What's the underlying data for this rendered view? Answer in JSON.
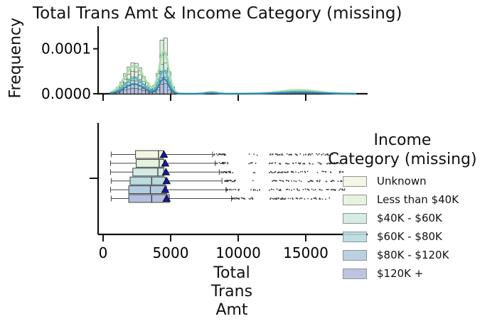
{
  "title": "Total Trans Amt & Income Category (missing)",
  "chart_data": [
    {
      "type": "histogram",
      "ylabel": "Frequency",
      "ylim": [
        0,
        0.00015
      ],
      "yticks": [
        "0.0000",
        "0.0001"
      ],
      "ytick_values": [
        0,
        0.0001
      ],
      "xlim": [
        -500,
        19500
      ],
      "kde_peaks": [
        {
          "x": 2300,
          "y": 6.2e-05
        },
        {
          "x": 4500,
          "y": 9.5e-05
        },
        {
          "x": 14500,
          "y": 8e-06
        }
      ],
      "bars_max_y": 0.00014
    },
    {
      "type": "box",
      "xlabel": "Total\nTrans\nAmt",
      "xlim": [
        -500,
        19500
      ],
      "xticks": [
        "0",
        "5000",
        "10000",
        "15000"
      ],
      "xtick_values": [
        0,
        5000,
        10000,
        15000
      ],
      "legend_title": "Income\nCategory (missing)",
      "legend_position": "right",
      "series": [
        {
          "name": "Unknown",
          "color": "#f3f7e2",
          "whisker_lo": 600,
          "q1": 2400,
          "median": 4100,
          "q3": 4450,
          "mean": 4500,
          "whisker_hi": 8100,
          "outlier_max": 17600
        },
        {
          "name": "Less than $40K",
          "color": "#e4f2de",
          "whisker_lo": 550,
          "q1": 2450,
          "median": 4150,
          "q3": 4500,
          "mean": 4600,
          "whisker_hi": 8300,
          "outlier_max": 17800
        },
        {
          "name": "$40K - $60K",
          "color": "#d2ebe4",
          "whisker_lo": 550,
          "q1": 2200,
          "median": 4050,
          "q3": 4500,
          "mean": 4650,
          "whisker_hi": 8600,
          "outlier_max": 17900
        },
        {
          "name": "$60K - $80K",
          "color": "#b8dce0",
          "whisker_lo": 600,
          "q1": 2000,
          "median": 3600,
          "q3": 4600,
          "mean": 4700,
          "whisker_hi": 8800,
          "outlier_max": 17950
        },
        {
          "name": "$80K - $120K",
          "color": "#b2cde0",
          "whisker_lo": 550,
          "q1": 1900,
          "median": 3500,
          "q3": 4700,
          "mean": 4600,
          "whisker_hi": 9100,
          "outlier_max": 17900
        },
        {
          "name": "$120K +",
          "color": "#b5bedd",
          "whisker_lo": 600,
          "q1": 1900,
          "median": 3600,
          "q3": 4900,
          "mean": 4700,
          "whisker_hi": 9500,
          "outlier_max": 16800
        }
      ]
    }
  ],
  "colors": {
    "hist_main": "#c7ebc8",
    "hist_dark": "#3a8fa8",
    "kde": "#a7dcaa",
    "mean_marker": "#1515b5"
  }
}
